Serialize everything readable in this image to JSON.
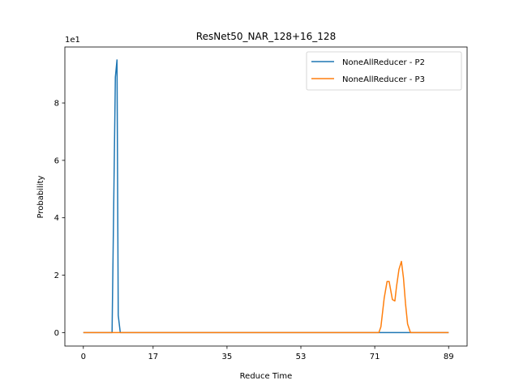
{
  "chart_data": {
    "type": "line",
    "title": "ResNet50_NAR_128+16_128",
    "xlabel": "Reduce Time",
    "ylabel": "Probability",
    "y_offset_text": "1e1",
    "xlim": [
      -4.5,
      93.5
    ],
    "ylim": [
      -0.47,
      9.95
    ],
    "x_ticks": [
      0,
      17,
      35,
      53,
      71,
      89
    ],
    "y_ticks": [
      0,
      2,
      4,
      6,
      8
    ],
    "grid": false,
    "legend_position": "top-right",
    "series": [
      {
        "name": "NoneAllReducer - P2",
        "color": "#1f77b4",
        "x": [
          0,
          7,
          7.8,
          8.2,
          8.5,
          9,
          89
        ],
        "y": [
          0,
          0,
          8.9,
          9.5,
          0.6,
          0,
          0
        ]
      },
      {
        "name": "NoneAllReducer - P3",
        "color": "#ff7f0e",
        "x": [
          0,
          72,
          72.5,
          73.3,
          74,
          74.5,
          75.3,
          75.9,
          76.3,
          76.9,
          77.5,
          78,
          78.5,
          79,
          79.7,
          89
        ],
        "y": [
          0,
          0,
          0.2,
          1.2,
          1.78,
          1.78,
          1.15,
          1.1,
          1.6,
          2.2,
          2.48,
          1.9,
          1.0,
          0.3,
          0,
          0
        ]
      }
    ]
  }
}
